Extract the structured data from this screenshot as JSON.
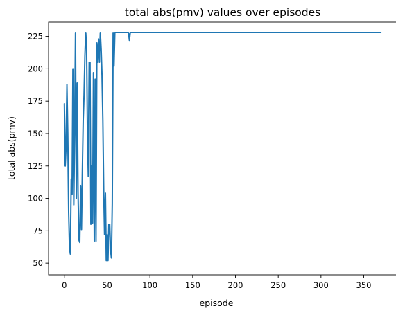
{
  "chart_data": {
    "type": "line",
    "title": "total abs(pmv) values over episodes",
    "xlabel": "episode",
    "ylabel": "total abs(pmv)",
    "xlim": [
      -18.5,
      388.5
    ],
    "ylim": [
      41,
      236
    ],
    "xticks": [
      0,
      50,
      100,
      150,
      200,
      250,
      300,
      350
    ],
    "yticks": [
      50,
      75,
      100,
      125,
      150,
      175,
      200,
      225
    ],
    "grid": false,
    "legend": "none",
    "series": [
      {
        "color": "#1f77b4",
        "x": [
          0,
          1,
          2,
          3,
          4,
          5,
          6,
          7,
          8,
          9,
          10,
          11,
          12,
          13,
          14,
          15,
          16,
          17,
          18,
          19,
          20,
          21,
          22,
          23,
          24,
          25,
          26,
          27,
          28,
          29,
          30,
          31,
          32,
          33,
          34,
          35,
          36,
          37,
          38,
          39,
          40,
          41,
          42,
          43,
          44,
          45,
          46,
          47,
          48,
          49,
          50,
          51,
          52,
          53,
          54,
          55,
          56,
          57,
          58,
          59,
          60,
          61,
          62,
          63,
          64,
          65,
          66,
          67,
          68,
          69,
          70,
          71,
          72,
          73,
          74,
          75,
          76,
          77,
          78,
          79,
          80,
          90,
          100,
          150,
          200,
          250,
          300,
          350,
          370
        ],
        "y": [
          173,
          125,
          140,
          188,
          150,
          90,
          62,
          57,
          115,
          103,
          200,
          95,
          150,
          228,
          100,
          189,
          105,
          68,
          66,
          110,
          76,
          120,
          160,
          180,
          210,
          228,
          215,
          150,
          117,
          205,
          205,
          80,
          125,
          81,
          197,
          67,
          192,
          67,
          220,
          205,
          223,
          205,
          228,
          215,
          195,
          160,
          106,
          72,
          104,
          52,
          72,
          52,
          80,
          80,
          60,
          54,
          96,
          228,
          202,
          228,
          228,
          228,
          228,
          228,
          228,
          228,
          228,
          228,
          228,
          228,
          228,
          228,
          228,
          228,
          228,
          228,
          222,
          228,
          228,
          228,
          228,
          228,
          228,
          228,
          228,
          228,
          228,
          228,
          228
        ]
      }
    ]
  }
}
